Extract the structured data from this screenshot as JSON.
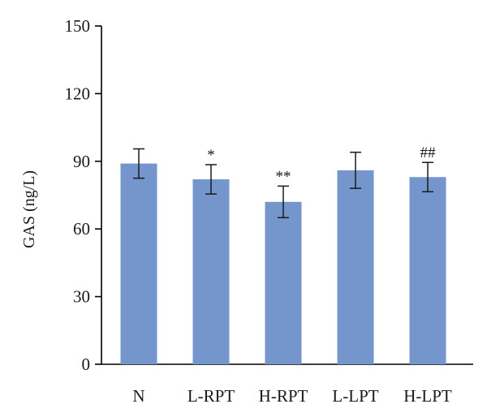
{
  "chart_data": {
    "type": "bar",
    "title": "",
    "xlabel": "",
    "ylabel": "GAS (ng/L)",
    "ylim": [
      0,
      150
    ],
    "yticks": [
      0,
      30,
      60,
      90,
      120,
      150
    ],
    "grid": false,
    "categories": [
      "N",
      "L-RPT",
      "H-RPT",
      "L-LPT",
      "H-LPT"
    ],
    "values": [
      89,
      82,
      72,
      86,
      83
    ],
    "errors": [
      6.5,
      6.5,
      7,
      8,
      6.5
    ],
    "annotations": [
      "",
      "*",
      "**",
      "",
      "##"
    ],
    "bar_color": "#7596cd"
  }
}
